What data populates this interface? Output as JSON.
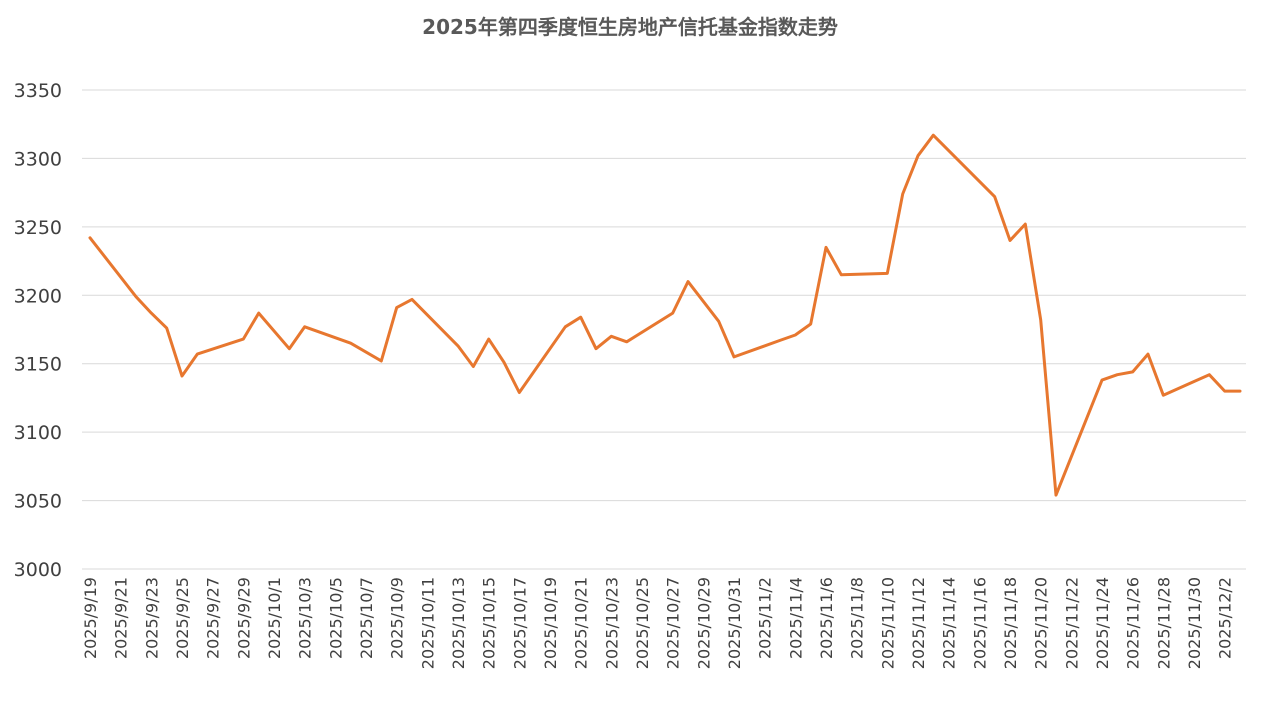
{
  "chart_data": {
    "type": "line",
    "title": "2025年第四季度恒生房地产信托基金指数走势",
    "xlabel": "",
    "ylabel": "",
    "ylim": [
      3000,
      3350
    ],
    "y_ticks": [
      3000,
      3050,
      3100,
      3150,
      3200,
      3250,
      3300,
      3350
    ],
    "grid": true,
    "legend": "none",
    "line_color": "#E7772F",
    "x_range": [
      "2025/9/19",
      "2025/12/3"
    ],
    "x_tick_labels": [
      "2025/9/19",
      "2025/9/21",
      "2025/9/23",
      "2025/9/25",
      "2025/9/27",
      "2025/9/29",
      "2025/10/1",
      "2025/10/3",
      "2025/10/5",
      "2025/10/7",
      "2025/10/9",
      "2025/10/11",
      "2025/10/13",
      "2025/10/15",
      "2025/10/17",
      "2025/10/19",
      "2025/10/21",
      "2025/10/23",
      "2025/10/25",
      "2025/10/27",
      "2025/10/29",
      "2025/10/31",
      "2025/11/2",
      "2025/11/4",
      "2025/11/6",
      "2025/11/8",
      "2025/11/10",
      "2025/11/12",
      "2025/11/14",
      "2025/11/16",
      "2025/11/18",
      "2025/11/20",
      "2025/11/22",
      "2025/11/24",
      "2025/11/26",
      "2025/11/28",
      "2025/11/30",
      "2025/12/2"
    ],
    "series": [
      {
        "x": [
          "2025/9/19",
          "2025/9/22",
          "2025/9/23",
          "2025/9/24",
          "2025/9/25",
          "2025/9/26",
          "2025/9/29",
          "2025/9/30",
          "2025/10/2",
          "2025/10/3",
          "2025/10/6",
          "2025/10/8",
          "2025/10/9",
          "2025/10/10",
          "2025/10/13",
          "2025/10/14",
          "2025/10/15",
          "2025/10/16",
          "2025/10/17",
          "2025/10/20",
          "2025/10/21",
          "2025/10/22",
          "2025/10/23",
          "2025/10/24",
          "2025/10/27",
          "2025/10/28",
          "2025/10/30",
          "2025/10/31",
          "2025/11/3",
          "2025/11/4",
          "2025/11/5",
          "2025/11/6",
          "2025/11/7",
          "2025/11/10",
          "2025/11/11",
          "2025/11/12",
          "2025/11/13",
          "2025/11/17",
          "2025/11/18",
          "2025/11/19",
          "2025/11/20",
          "2025/11/21",
          "2025/11/24",
          "2025/11/25",
          "2025/11/26",
          "2025/11/27",
          "2025/11/28",
          "2025/12/1",
          "2025/12/2",
          "2025/12/3"
        ],
        "values": [
          3242,
          3199,
          3187,
          3176,
          3141,
          3157,
          3168,
          3187,
          3161,
          3177,
          3165,
          3152,
          3191,
          3197,
          3163,
          3148,
          3168,
          3151,
          3129,
          3177,
          3184,
          3161,
          3170,
          3166,
          3187,
          3210,
          3181,
          3155,
          3167,
          3171,
          3179,
          3235,
          3215,
          3216,
          3274,
          3302,
          3317,
          3272,
          3240,
          3252,
          3182,
          3054,
          3138,
          3142,
          3144,
          3157,
          3127,
          3142,
          3130,
          3130
        ]
      }
    ]
  }
}
